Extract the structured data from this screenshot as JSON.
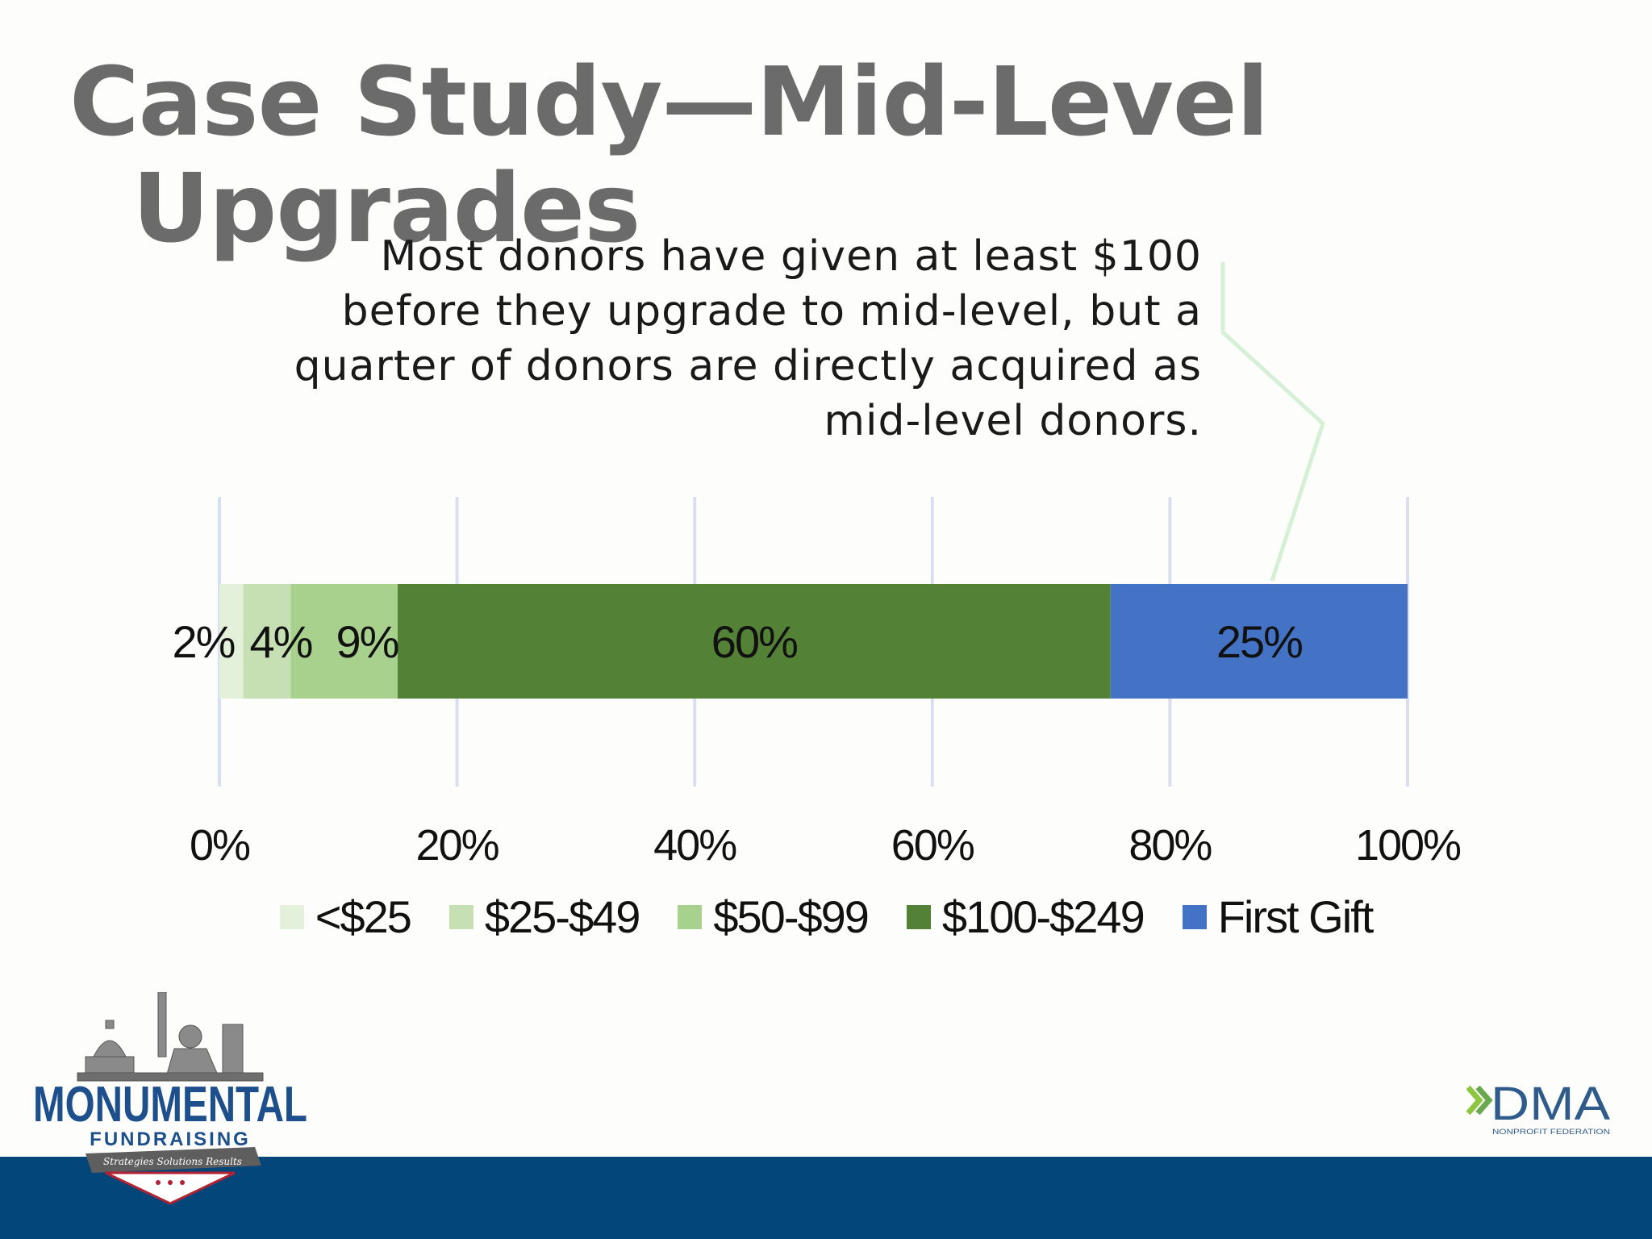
{
  "title": {
    "line1": "Case Study—Mid-Level",
    "line2": "Upgrades"
  },
  "callout": {
    "lines": [
      "Most donors have given at least $100",
      "before they upgrade to mid-level, but a",
      "quarter of donors are directly acquired as",
      "mid-level donors."
    ]
  },
  "chart_data": {
    "type": "bar",
    "orientation": "horizontal",
    "stacked": true,
    "categories": [
      ""
    ],
    "series": [
      {
        "name": "<$25",
        "values": [
          2
        ],
        "label": "2%",
        "color": "#e3f0da"
      },
      {
        "name": "$25-$49",
        "values": [
          4
        ],
        "label": "4%",
        "color": "#c6e0b4"
      },
      {
        "name": "$50-$99",
        "values": [
          9
        ],
        "label": "9%",
        "color": "#a9d18e"
      },
      {
        "name": "$100-$249",
        "values": [
          60
        ],
        "label": "60%",
        "color": "#538135"
      },
      {
        "name": "First Gift",
        "values": [
          25
        ],
        "label": "25%",
        "color": "#4472c4"
      }
    ],
    "xlim": [
      0,
      100
    ],
    "xticks": [
      "0%",
      "20%",
      "40%",
      "60%",
      "80%",
      "100%"
    ],
    "grid": true,
    "legend": "bottom"
  },
  "logos": {
    "left": {
      "name": "MONUMENTAL",
      "sub": "FUNDRAISING",
      "tagline": "Strategies  Solutions  Results"
    },
    "right": {
      "name": "DMA",
      "sub": "NONPROFIT FEDERATION"
    }
  },
  "colors": {
    "footer": "#03467a",
    "title": "#6b6b6b",
    "accent_green": "#8fd08a"
  }
}
